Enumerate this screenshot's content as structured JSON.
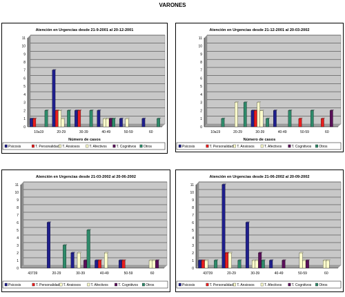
{
  "page": {
    "title": "VARONES"
  },
  "colors": {
    "plot_bg": "#c8c8c8",
    "series": [
      "#1f1f8c",
      "#e81e1e",
      "#ffffcc",
      "#ffffcc",
      "#5a0f5a",
      "#2e8a6a"
    ]
  },
  "chart_data": [
    {
      "type": "bar",
      "title": "Atención en Urgencias desde 21-9-2001 al 20-12-2001",
      "xlabel": "Número de casos",
      "ylabel": "",
      "ylim": [
        0,
        11
      ],
      "yticks": [
        "0",
        "1",
        "2",
        "3",
        "4",
        "5",
        "6",
        "7",
        "8",
        "9",
        "10",
        "11"
      ],
      "grid": true,
      "legend": "bottom",
      "categories": [
        "10a19",
        "20-29",
        "30-39",
        "40-49",
        "50-59",
        "60"
      ],
      "series": [
        {
          "name": "Psicosis",
          "values": [
            1,
            7,
            2,
            2,
            1,
            1
          ]
        },
        {
          "name": "T. Personalidad",
          "values": [
            1,
            2,
            2,
            0,
            0,
            0
          ]
        },
        {
          "name": "T. Ansiosos",
          "values": [
            0,
            2,
            0,
            1,
            1,
            0
          ]
        },
        {
          "name": "T. Afectivos",
          "values": [
            0,
            1,
            0,
            1,
            0,
            0
          ]
        },
        {
          "name": "T. Cognitivos",
          "values": [
            0,
            0,
            0,
            1,
            0,
            0
          ]
        },
        {
          "name": "Otros",
          "values": [
            2,
            2,
            2,
            1,
            0,
            1
          ]
        }
      ]
    },
    {
      "type": "bar",
      "title": "Atención en Urgencias desde 21-12-2001 al 20-03-2002",
      "xlabel": "Número de casos",
      "ylabel": "",
      "ylim": [
        0,
        11
      ],
      "yticks": [
        "0",
        "1",
        "2",
        "3",
        "4",
        "5",
        "6",
        "7",
        "8",
        "9",
        "10",
        "11"
      ],
      "grid": true,
      "legend": "bottom",
      "categories": [
        "10a19",
        "20-29",
        "30-39",
        "40-49",
        "50-59",
        "60"
      ],
      "series": [
        {
          "name": "Psicosis",
          "values": [
            0,
            0,
            2,
            2,
            0,
            0
          ]
        },
        {
          "name": "T. Personalidad",
          "values": [
            0,
            0,
            2,
            0,
            1,
            1
          ]
        },
        {
          "name": "T. Ansiosos",
          "values": [
            0,
            3,
            3,
            0,
            0,
            0
          ]
        },
        {
          "name": "T. Afectivos",
          "values": [
            0,
            0,
            2,
            0,
            0,
            0
          ]
        },
        {
          "name": "T. Cognitivos",
          "values": [
            0,
            0,
            0,
            0,
            0,
            2
          ]
        },
        {
          "name": "Otros",
          "values": [
            1,
            3,
            1,
            2,
            2,
            0
          ]
        }
      ]
    },
    {
      "type": "bar",
      "title": "Atención en Urgencias desde 21-03-2002 al 20-06-2002",
      "xlabel": "",
      "ylabel": "",
      "ylim": [
        0,
        11
      ],
      "yticks": [
        "0",
        "1",
        "2",
        "3",
        "4",
        "5",
        "6",
        "7",
        "8",
        "9",
        "10",
        "11"
      ],
      "grid": true,
      "legend": "bottom",
      "categories": [
        "43739",
        "20-29",
        "30-39",
        "40-49",
        "50-59",
        "60"
      ],
      "series": [
        {
          "name": "Psicosis",
          "values": [
            0,
            6,
            2,
            1,
            1,
            0
          ]
        },
        {
          "name": "T. Personalidad",
          "values": [
            0,
            0,
            0,
            1,
            1,
            0
          ]
        },
        {
          "name": "T. Ansiosos",
          "values": [
            0,
            0,
            2,
            0,
            0,
            1
          ]
        },
        {
          "name": "T. Afectivos",
          "values": [
            0,
            0,
            0,
            2,
            0,
            1
          ]
        },
        {
          "name": "T. Cognitivos",
          "values": [
            0,
            0,
            1,
            0,
            0,
            1
          ]
        },
        {
          "name": "Otros",
          "values": [
            0,
            3,
            5,
            0,
            0,
            0
          ]
        }
      ]
    },
    {
      "type": "bar",
      "title": "Atención en Urgencias desde 21-06-2002 al 20-09-2002",
      "xlabel": "",
      "ylabel": "",
      "ylim": [
        0,
        11
      ],
      "yticks": [
        "0",
        "1",
        "2",
        "3",
        "4",
        "5",
        "6",
        "7",
        "8",
        "9",
        "10",
        "11"
      ],
      "grid": true,
      "legend": "bottom",
      "categories": [
        "43739",
        "20-29",
        "30-39",
        "40-49",
        "50-59",
        "60"
      ],
      "series": [
        {
          "name": "Psicosis",
          "values": [
            1,
            11,
            6,
            1,
            0,
            0
          ]
        },
        {
          "name": "T. Personalidad",
          "values": [
            1,
            2,
            0,
            0,
            0,
            0
          ]
        },
        {
          "name": "T. Ansiosos",
          "values": [
            1,
            2,
            1,
            0,
            2,
            1
          ]
        },
        {
          "name": "T. Afectivos",
          "values": [
            0,
            0,
            1,
            0,
            1,
            1
          ]
        },
        {
          "name": "T. Cognitivos",
          "values": [
            0,
            0,
            2,
            1,
            1,
            0
          ]
        },
        {
          "name": "Otros",
          "values": [
            1,
            1,
            1,
            0,
            0,
            0
          ]
        }
      ]
    }
  ]
}
